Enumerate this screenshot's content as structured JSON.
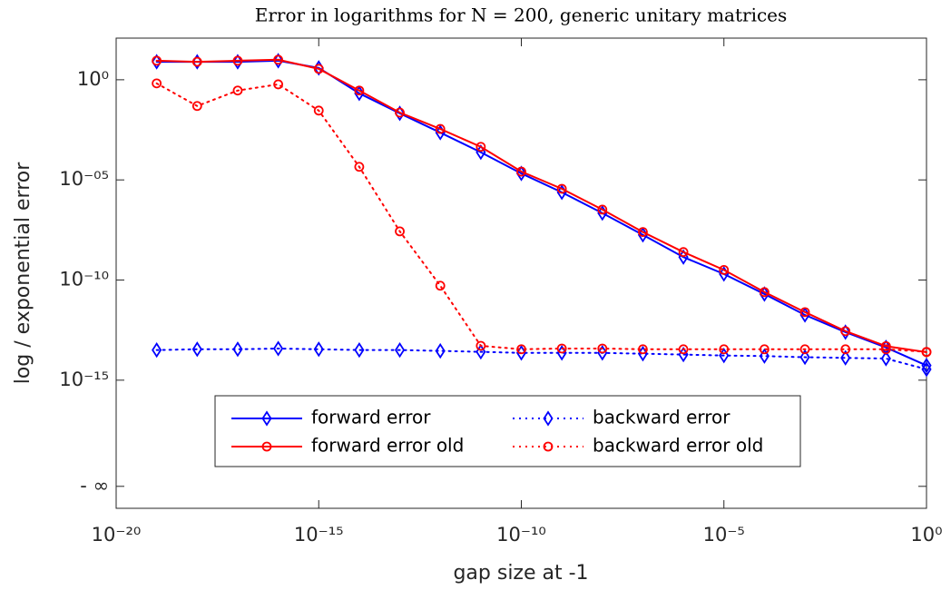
{
  "chart_data": {
    "type": "line",
    "title": "Error in logarithms for N = 200, generic unitary matrices",
    "xlabel": "gap size at -1",
    "ylabel": "log / exponential error",
    "xscale": "log",
    "yscale": "log",
    "xlim": [
      1e-20,
      1
    ],
    "ylim": [
      4e-22,
      120
    ],
    "xticks": [
      {
        "value": 1e-20,
        "label": "10⁻²⁰"
      },
      {
        "value": 1e-15,
        "label": "10⁻¹⁵"
      },
      {
        "value": 1e-10,
        "label": "10⁻¹⁰"
      },
      {
        "value": 1e-05,
        "label": "10⁻⁵"
      },
      {
        "value": 1,
        "label": "10⁰"
      }
    ],
    "yticks": [
      {
        "value": 5e-21,
        "label": "- ∞"
      },
      {
        "value": 1e-15,
        "label": "10⁻¹⁵"
      },
      {
        "value": 1e-10,
        "label": "10⁻¹⁰"
      },
      {
        "value": 1e-05,
        "label": "10⁻⁰⁵"
      },
      {
        "value": 1,
        "label": "10⁰"
      }
    ],
    "x": [
      1e-19,
      1e-18,
      1e-17,
      1e-16,
      1e-15,
      1e-14,
      1e-13,
      1e-12,
      1e-11,
      1e-10,
      1e-09,
      1e-08,
      1e-07,
      1e-06,
      1e-05,
      0.0001,
      0.001,
      0.01,
      0.1,
      1
    ],
    "legend": "bottom-center",
    "series": [
      {
        "name": "forward error",
        "color": "#0000ff",
        "linestyle": "solid",
        "marker": "diamond",
        "values": [
          7.9,
          7.9,
          7.9,
          8.9,
          3.9,
          0.21,
          0.021,
          0.0023,
          0.00024,
          2.1e-05,
          2.4e-06,
          2.2e-07,
          1.8e-08,
          1.4e-09,
          2e-10,
          2e-11,
          1.8e-12,
          2.5e-13,
          4.3e-14,
          5.4e-15
        ]
      },
      {
        "name": "forward error old",
        "color": "#ff0000",
        "linestyle": "solid",
        "marker": "circle",
        "values": [
          8.9,
          7.9,
          8.9,
          10,
          3.5,
          0.29,
          0.023,
          0.0035,
          0.00045,
          2.6e-05,
          3.6e-06,
          3.3e-07,
          2.5e-08,
          2.5e-09,
          3.2e-10,
          2.5e-11,
          2.5e-12,
          2.8e-13,
          5e-14,
          2.5e-14
        ]
      },
      {
        "name": "backward error",
        "color": "#0000ff",
        "linestyle": "dotted",
        "marker": "diamond",
        "values": [
          3.2e-14,
          3.5e-14,
          3.5e-14,
          3.8e-14,
          3.5e-14,
          3.2e-14,
          3.2e-14,
          2.9e-14,
          2.6e-14,
          2.3e-14,
          2.3e-14,
          2.3e-14,
          2.1e-14,
          1.9e-14,
          1.7e-14,
          1.6e-14,
          1.4e-14,
          1.3e-14,
          1.2e-14,
          3.5e-15
        ]
      },
      {
        "name": "backward error old",
        "color": "#ff0000",
        "linestyle": "dotted",
        "marker": "circle",
        "values": [
          0.66,
          0.049,
          0.29,
          0.59,
          0.029,
          4.5e-05,
          2.7e-08,
          5.2e-11,
          5.2e-14,
          3.5e-14,
          3.8e-14,
          3.8e-14,
          3.5e-14,
          3.5e-14,
          3.5e-14,
          3.5e-14,
          3.5e-14,
          3.5e-14,
          3.5e-14,
          2.6e-14
        ]
      }
    ]
  }
}
